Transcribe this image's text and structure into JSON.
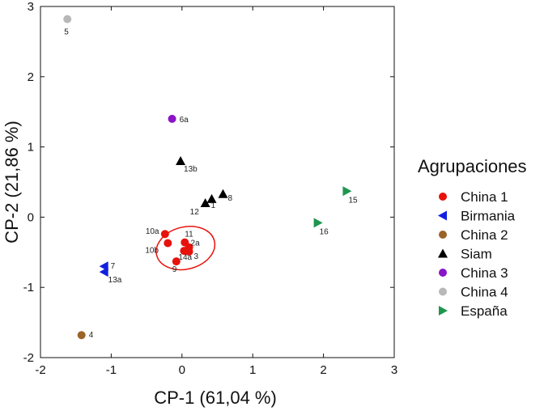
{
  "chart_data": {
    "type": "scatter",
    "title": "",
    "xlabel": "CP-1 (61,04 %)",
    "ylabel": "CP-2 (21,86 %)",
    "xlim": [
      -2,
      3
    ],
    "ylim": [
      -2,
      3
    ],
    "xticks": [
      "-2",
      "-1",
      "0",
      "1",
      "2",
      "3"
    ],
    "yticks": [
      "-2",
      "-1",
      "0",
      "1",
      "2",
      "3"
    ],
    "grid": false,
    "legend": {
      "title": "Agrupaciones",
      "position": "right"
    },
    "series": [
      {
        "name": "China 1",
        "marker": "circle",
        "color": "#e8120c",
        "points": [
          {
            "x": -0.24,
            "y": -0.24,
            "label": "10a"
          },
          {
            "x": -0.2,
            "y": -0.37,
            "label": "10b"
          },
          {
            "x": 0.04,
            "y": -0.36,
            "label": "11"
          },
          {
            "x": 0.1,
            "y": -0.43,
            "label": "2a"
          },
          {
            "x": 0.03,
            "y": -0.48,
            "label": "14a"
          },
          {
            "x": 0.1,
            "y": -0.49,
            "label": "3"
          },
          {
            "x": -0.08,
            "y": -0.63,
            "label": "9"
          }
        ]
      },
      {
        "name": "Birmania",
        "marker": "triangle-left",
        "color": "#1020e0",
        "points": [
          {
            "x": -1.1,
            "y": -0.7,
            "label": "7"
          },
          {
            "x": -1.1,
            "y": -0.78,
            "label": "13a"
          }
        ]
      },
      {
        "name": "China 2",
        "marker": "circle",
        "color": "#9c6328",
        "points": [
          {
            "x": -1.42,
            "y": -1.68,
            "label": "4"
          }
        ]
      },
      {
        "name": "Siam",
        "marker": "triangle-up",
        "color": "#000000",
        "points": [
          {
            "x": -0.02,
            "y": 0.8,
            "label": "13b"
          },
          {
            "x": 0.58,
            "y": 0.33,
            "label": "8"
          },
          {
            "x": 0.42,
            "y": 0.26,
            "label": "1"
          },
          {
            "x": 0.33,
            "y": 0.2,
            "label": "12"
          }
        ]
      },
      {
        "name": "China 3",
        "marker": "circle",
        "color": "#8a14c8",
        "points": [
          {
            "x": -0.14,
            "y": 1.4,
            "label": "6a"
          }
        ]
      },
      {
        "name": "China 4",
        "marker": "circle",
        "color": "#b8b8b8",
        "points": [
          {
            "x": -1.62,
            "y": 2.82,
            "label": "5"
          }
        ]
      },
      {
        "name": "España",
        "marker": "triangle-right",
        "color": "#1e9650",
        "points": [
          {
            "x": 2.33,
            "y": 0.37,
            "label": "15"
          },
          {
            "x": 1.92,
            "y": -0.08,
            "label": "16"
          }
        ]
      }
    ],
    "ellipse": {
      "group": "China 1",
      "color": "#e8120c",
      "center": [
        0.05,
        -0.44
      ],
      "radius": [
        0.42,
        0.3
      ]
    }
  }
}
